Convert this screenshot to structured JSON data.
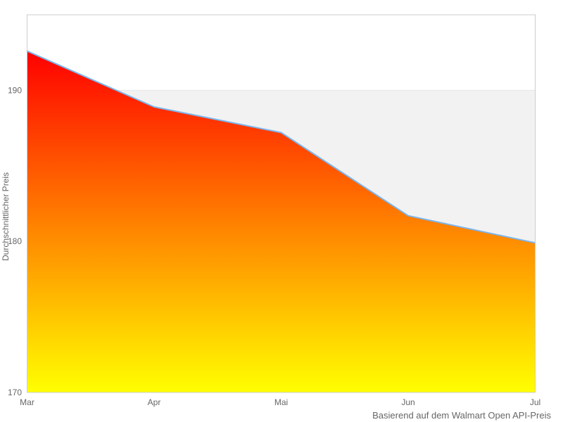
{
  "chart_data": {
    "type": "area",
    "title": "",
    "categories": [
      "Mar",
      "Apr",
      "Mai",
      "Jun",
      "Jul"
    ],
    "values": [
      192.6,
      188.9,
      187.2,
      181.7,
      179.9
    ],
    "xlabel": "",
    "ylabel": "Durchschnittlicher Preis",
    "ylim": [
      170,
      195
    ],
    "yticks": [
      170,
      180,
      190
    ],
    "ytick_labels": [
      "170",
      "180",
      "190"
    ],
    "alternate_band": [
      180,
      190
    ],
    "caption": "Basierend auf dem Walmart Open API-Preis",
    "legend": "none",
    "grid": "horizontal",
    "colors": {
      "gradient_top": "#ff0000",
      "gradient_bottom": "#ffff00",
      "line": "#7cb5ec",
      "band": "#f2f2f2",
      "gridline": "#e6e6e6",
      "plot_border": "#cccccc",
      "text": "#666666",
      "background": "#ffffff"
    }
  }
}
